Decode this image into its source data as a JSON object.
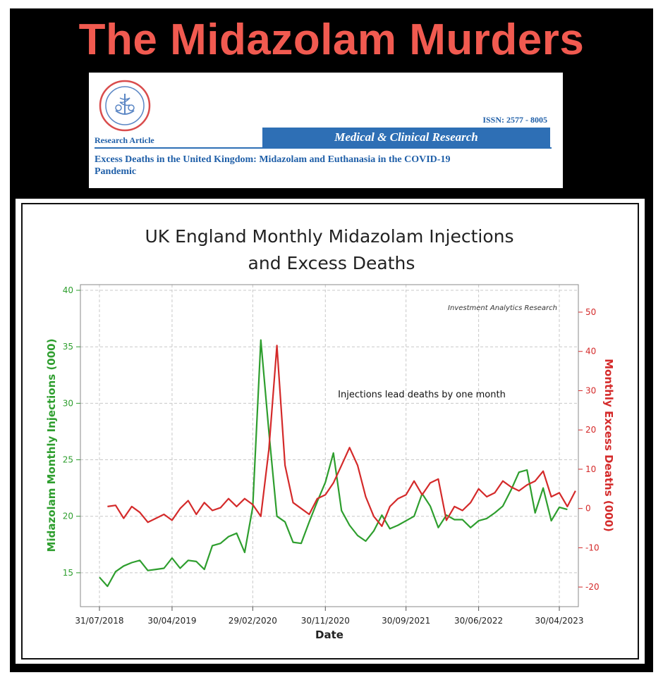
{
  "headline": "The Midazolam Murders",
  "paper": {
    "article_type": "Research Article",
    "issn": "ISSN: 2577 - 8005",
    "journal": "Medical & Clinical Research",
    "title_line1": "Excess Deaths in the United Kingdom: Midazolam and Euthanasia in the COVID-19",
    "title_line2": "Pandemic"
  },
  "colors": {
    "headline": "#f15a50",
    "injections": "#2e9e2e",
    "deaths": "#d42a2a",
    "journal_bar": "#2e6fb5"
  },
  "chart_data": {
    "type": "line",
    "title_line1": "UK England Monthly Midazolam Injections",
    "title_line2": "and Excess Deaths",
    "xlabel": "Date",
    "ylabel_left": "Midazolam Monthly Injections (000)",
    "ylabel_right": "Monthly Excess Deaths (000)",
    "annotation": "Injections lead deaths by one month",
    "credit": "Investment Analytics Research",
    "grid": true,
    "x_tick_labels": [
      "31/07/2018",
      "30/04/2019",
      "29/02/2020",
      "30/11/2020",
      "30/09/2021",
      "30/06/2022",
      "30/04/2023"
    ],
    "x_tick_month_index": [
      0,
      9,
      19,
      28,
      38,
      47,
      57
    ],
    "ylim_left": [
      12,
      40.5
    ],
    "yticks_left": [
      15,
      20,
      25,
      30,
      35,
      40
    ],
    "ylim_right": [
      -25,
      57
    ],
    "yticks_right": [
      -20,
      -10,
      0,
      10,
      20,
      30,
      40,
      50
    ],
    "x_start": "07/2018",
    "series": [
      {
        "name": "Midazolam Monthly Injections (000)",
        "axis": "left",
        "values": [
          14.6,
          13.8,
          15.1,
          15.6,
          15.9,
          16.1,
          15.2,
          15.3,
          15.4,
          16.3,
          15.4,
          16.1,
          16.0,
          15.3,
          17.4,
          17.6,
          18.2,
          18.5,
          16.8,
          20.8,
          35.6,
          27.5,
          20.0,
          19.5,
          17.7,
          17.6,
          19.5,
          21.3,
          23.0,
          25.6,
          20.5,
          19.2,
          18.3,
          17.8,
          18.7,
          20.1,
          18.9,
          19.2,
          19.6,
          20.0,
          22.0,
          20.9,
          19.0,
          20.1,
          19.7,
          19.7,
          19.0,
          19.6,
          19.8,
          20.3,
          20.9,
          22.3,
          23.9,
          24.1,
          20.3,
          22.5,
          19.6,
          20.8,
          20.6
        ],
        "start_index": 0
      },
      {
        "name": "Monthly Excess Deaths (000)",
        "axis": "right",
        "values": [
          0.5,
          0.8,
          -2.5,
          0.5,
          -1.0,
          -3.5,
          -2.5,
          -1.5,
          -3.0,
          0.0,
          2.0,
          -1.5,
          1.5,
          -0.5,
          0.2,
          2.5,
          0.5,
          2.5,
          1.0,
          -2.0,
          15.0,
          41.5,
          11.0,
          1.5,
          0.0,
          -1.5,
          2.5,
          3.5,
          6.5,
          11.0,
          15.5,
          11.0,
          3.0,
          -2.0,
          -4.5,
          0.5,
          2.5,
          3.5,
          7.0,
          3.5,
          6.5,
          7.5,
          -3.0,
          0.5,
          -0.5,
          1.5,
          5.0,
          3.0,
          4.0,
          7.0,
          5.5,
          4.5,
          6.0,
          7.0,
          9.5,
          3.0,
          4.0,
          0.5,
          4.5
        ],
        "start_index": 1
      }
    ]
  }
}
